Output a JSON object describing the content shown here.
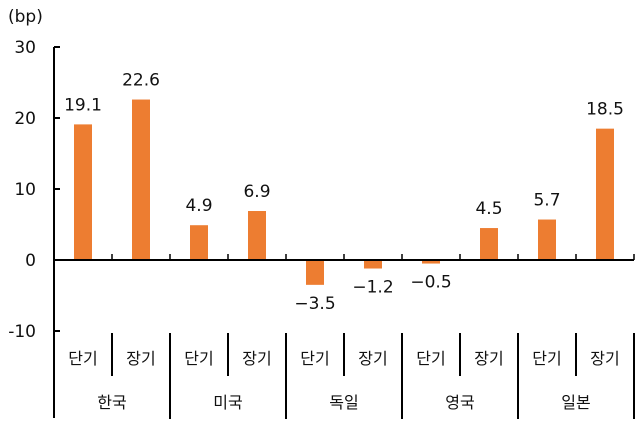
{
  "chart_data": {
    "type": "bar",
    "title": "",
    "unit_label": "(bp)",
    "xlabel": "",
    "ylabel": "(bp)",
    "ylim": [
      -10,
      30
    ],
    "yticks": [
      30,
      20,
      10,
      0,
      -10
    ],
    "ytick_labels": [
      "30",
      "20",
      "10",
      "0",
      "-10"
    ],
    "categories": [
      "단기",
      "장기",
      "단기",
      "장기",
      "단기",
      "장기",
      "단기",
      "장기",
      "단기",
      "장기"
    ],
    "groups": [
      "한국",
      "미국",
      "독일",
      "영국",
      "일본"
    ],
    "values": [
      19.1,
      22.6,
      4.9,
      6.9,
      -3.5,
      -1.2,
      -0.5,
      4.5,
      5.7,
      18.5
    ],
    "value_labels": [
      "19.1",
      "22.6",
      "4.9",
      "6.9",
      "−3.5",
      "−1.2",
      "−0.5",
      "4.5",
      "5.7",
      "18.5"
    ],
    "series": [
      {
        "name": "bp",
        "values": [
          19.1,
          22.6,
          4.9,
          6.9,
          -3.5,
          -1.2,
          -0.5,
          4.5,
          5.7,
          18.5
        ],
        "color": "#ED7D31"
      }
    ],
    "grid": false,
    "legend": null
  }
}
